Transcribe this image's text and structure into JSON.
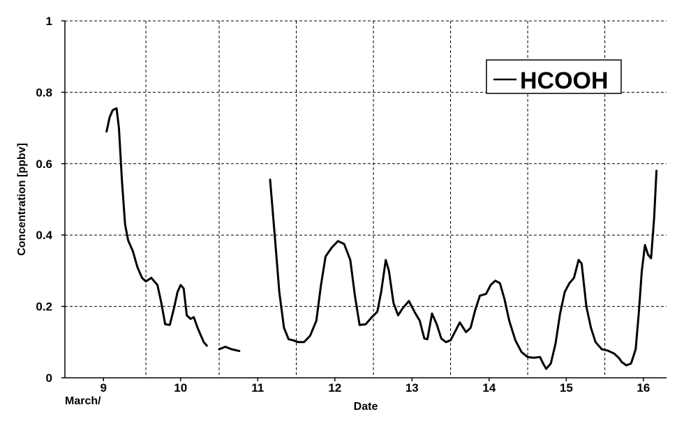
{
  "chart_data": {
    "type": "line",
    "xlabel": "Date",
    "ylabel": "Concentration [ppbv]",
    "x_prefix_label": "March/",
    "xlim": [
      8.5,
      16.3
    ],
    "ylim": [
      0,
      1
    ],
    "x_ticks": [
      9,
      10,
      11,
      12,
      13,
      14,
      15,
      16
    ],
    "x_tick_labels": [
      "9",
      "10",
      "11",
      "12",
      "13",
      "14",
      "15",
      "16"
    ],
    "x_gridlines": [
      9.55,
      10.5,
      11.5,
      12.5,
      13.5,
      14.5,
      15.5
    ],
    "y_ticks": [
      0,
      0.2,
      0.4,
      0.6,
      0.8,
      1
    ],
    "y_tick_labels": [
      "0",
      "0.2",
      "0.4",
      "0.6",
      "0.8",
      "1"
    ],
    "grid": "dashed",
    "legend_position": "top-right",
    "series": [
      {
        "name": "HCOOH",
        "color": "#000000",
        "segments": [
          [
            [
              9.04,
              0.69
            ],
            [
              9.08,
              0.73
            ],
            [
              9.12,
              0.75
            ],
            [
              9.17,
              0.755
            ],
            [
              9.2,
              0.7
            ],
            [
              9.24,
              0.55
            ],
            [
              9.28,
              0.43
            ],
            [
              9.32,
              0.385
            ],
            [
              9.38,
              0.355
            ],
            [
              9.44,
              0.31
            ],
            [
              9.5,
              0.28
            ],
            [
              9.55,
              0.27
            ],
            [
              9.62,
              0.28
            ],
            [
              9.7,
              0.26
            ],
            [
              9.75,
              0.21
            ],
            [
              9.8,
              0.15
            ],
            [
              9.86,
              0.148
            ],
            [
              9.92,
              0.2
            ],
            [
              9.96,
              0.24
            ],
            [
              10.0,
              0.26
            ],
            [
              10.04,
              0.25
            ],
            [
              10.08,
              0.175
            ],
            [
              10.13,
              0.165
            ],
            [
              10.17,
              0.17
            ],
            [
              10.22,
              0.14
            ],
            [
              10.3,
              0.1
            ],
            [
              10.34,
              0.09
            ]
          ],
          [
            [
              10.5,
              0.08
            ],
            [
              10.58,
              0.087
            ],
            [
              10.66,
              0.08
            ],
            [
              10.76,
              0.075
            ]
          ],
          [
            [
              11.16,
              0.555
            ],
            [
              11.22,
              0.4
            ],
            [
              11.28,
              0.24
            ],
            [
              11.34,
              0.14
            ],
            [
              11.4,
              0.108
            ],
            [
              11.46,
              0.105
            ],
            [
              11.52,
              0.1
            ],
            [
              11.6,
              0.1
            ],
            [
              11.68,
              0.118
            ],
            [
              11.76,
              0.16
            ],
            [
              11.82,
              0.26
            ],
            [
              11.88,
              0.34
            ],
            [
              11.96,
              0.365
            ],
            [
              12.04,
              0.383
            ],
            [
              12.12,
              0.375
            ],
            [
              12.2,
              0.33
            ],
            [
              12.26,
              0.23
            ],
            [
              12.32,
              0.148
            ],
            [
              12.4,
              0.15
            ],
            [
              12.48,
              0.17
            ],
            [
              12.55,
              0.185
            ],
            [
              12.6,
              0.24
            ],
            [
              12.66,
              0.33
            ],
            [
              12.7,
              0.3
            ],
            [
              12.76,
              0.21
            ],
            [
              12.82,
              0.175
            ],
            [
              12.88,
              0.195
            ],
            [
              12.96,
              0.215
            ],
            [
              13.04,
              0.182
            ],
            [
              13.1,
              0.16
            ],
            [
              13.16,
              0.11
            ],
            [
              13.2,
              0.108
            ],
            [
              13.26,
              0.18
            ],
            [
              13.32,
              0.15
            ],
            [
              13.38,
              0.11
            ],
            [
              13.44,
              0.1
            ],
            [
              13.5,
              0.105
            ],
            [
              13.56,
              0.13
            ],
            [
              13.62,
              0.155
            ],
            [
              13.7,
              0.128
            ],
            [
              13.76,
              0.14
            ],
            [
              13.82,
              0.19
            ],
            [
              13.88,
              0.23
            ],
            [
              13.96,
              0.235
            ],
            [
              14.02,
              0.26
            ],
            [
              14.08,
              0.272
            ],
            [
              14.14,
              0.265
            ],
            [
              14.2,
              0.22
            ],
            [
              14.26,
              0.16
            ],
            [
              14.34,
              0.105
            ],
            [
              14.42,
              0.072
            ],
            [
              14.5,
              0.058
            ],
            [
              14.58,
              0.056
            ],
            [
              14.66,
              0.058
            ],
            [
              14.7,
              0.04
            ],
            [
              14.74,
              0.025
            ],
            [
              14.8,
              0.04
            ],
            [
              14.86,
              0.095
            ],
            [
              14.92,
              0.18
            ],
            [
              14.98,
              0.24
            ],
            [
              15.04,
              0.265
            ],
            [
              15.1,
              0.28
            ],
            [
              15.16,
              0.33
            ],
            [
              15.2,
              0.32
            ],
            [
              15.26,
              0.2
            ],
            [
              15.32,
              0.14
            ],
            [
              15.38,
              0.1
            ],
            [
              15.46,
              0.08
            ],
            [
              15.54,
              0.076
            ],
            [
              15.62,
              0.068
            ],
            [
              15.68,
              0.056
            ],
            [
              15.72,
              0.044
            ],
            [
              15.78,
              0.035
            ],
            [
              15.84,
              0.04
            ],
            [
              15.9,
              0.08
            ],
            [
              15.94,
              0.18
            ],
            [
              15.98,
              0.3
            ],
            [
              16.02,
              0.372
            ],
            [
              16.06,
              0.345
            ],
            [
              16.1,
              0.335
            ],
            [
              16.14,
              0.45
            ],
            [
              16.17,
              0.58
            ]
          ]
        ]
      }
    ]
  }
}
